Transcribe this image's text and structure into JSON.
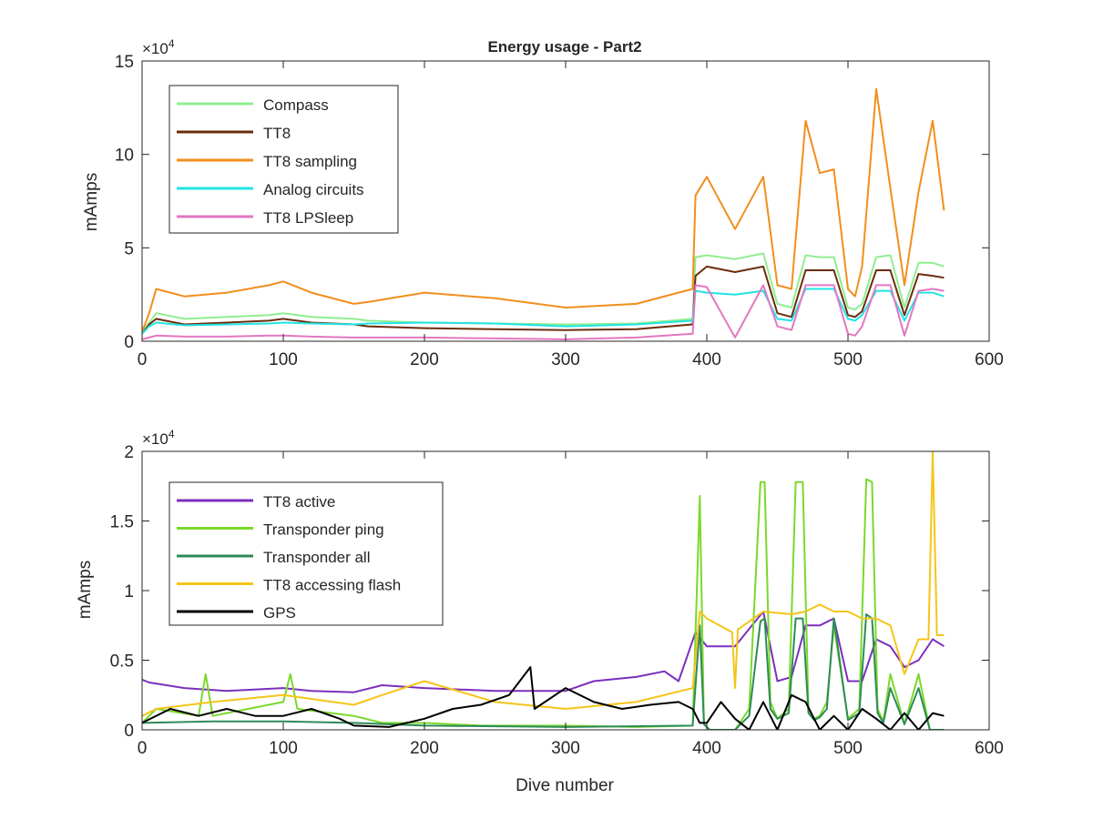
{
  "chart_data": [
    {
      "type": "line",
      "title": "Energy usage - Part2",
      "xlabel": "",
      "ylabel": "mAmps",
      "xlim": [
        0,
        600
      ],
      "ylim": [
        0,
        150000
      ],
      "y_multiplier_label": {
        "base": "×10",
        "exp": "4"
      },
      "x_ticks": [
        "0",
        "100",
        "200",
        "300",
        "400",
        "500",
        "600"
      ],
      "y_ticks": [
        "0",
        "5",
        "10",
        "15"
      ],
      "legend_position": "top-left",
      "grid": false,
      "series": [
        {
          "name": "Compass",
          "color": "#90ee90",
          "x": [
            0,
            5,
            10,
            30,
            60,
            90,
            100,
            120,
            150,
            160,
            200,
            250,
            300,
            350,
            390,
            392,
            400,
            420,
            440,
            450,
            460,
            470,
            480,
            490,
            500,
            505,
            510,
            520,
            530,
            540,
            550,
            560,
            568
          ],
          "values": [
            5000,
            10000,
            15000,
            12000,
            13000,
            14000,
            15000,
            13000,
            12000,
            11000,
            10000,
            9500,
            9000,
            9500,
            12000,
            45000,
            46000,
            44000,
            47000,
            20000,
            18000,
            46000,
            45000,
            45000,
            18000,
            17000,
            20000,
            45000,
            46000,
            18000,
            42000,
            42000,
            40000
          ]
        },
        {
          "name": "TT8",
          "color": "#6b2d0c",
          "x": [
            0,
            5,
            10,
            30,
            60,
            90,
            100,
            120,
            150,
            160,
            200,
            250,
            300,
            350,
            390,
            392,
            400,
            420,
            440,
            450,
            460,
            470,
            480,
            490,
            500,
            505,
            510,
            520,
            530,
            540,
            550,
            560,
            568
          ],
          "values": [
            4000,
            9000,
            12000,
            9000,
            10000,
            11000,
            12000,
            10000,
            9000,
            8000,
            7000,
            6500,
            6000,
            6500,
            9000,
            35000,
            40000,
            37000,
            40000,
            15000,
            13000,
            38000,
            38000,
            38000,
            14000,
            13000,
            16000,
            38000,
            38000,
            14000,
            36000,
            35000,
            34000
          ]
        },
        {
          "name": "TT8 sampling",
          "color": "#f28e1c",
          "x": [
            0,
            5,
            10,
            30,
            60,
            90,
            100,
            120,
            150,
            160,
            200,
            250,
            300,
            350,
            390,
            392,
            400,
            420,
            440,
            450,
            460,
            470,
            480,
            490,
            500,
            505,
            510,
            520,
            530,
            540,
            550,
            560,
            568
          ],
          "values": [
            5000,
            15000,
            28000,
            24000,
            26000,
            30000,
            32000,
            26000,
            20000,
            21000,
            26000,
            23000,
            18000,
            20000,
            28000,
            78000,
            88000,
            60000,
            88000,
            30000,
            28000,
            118000,
            90000,
            92000,
            28000,
            24000,
            40000,
            135000,
            82000,
            30000,
            80000,
            118000,
            70000
          ]
        },
        {
          "name": "Analog circuits",
          "color": "#22e3e3",
          "x": [
            0,
            5,
            10,
            30,
            60,
            90,
            100,
            120,
            150,
            160,
            200,
            250,
            300,
            350,
            390,
            392,
            400,
            420,
            440,
            450,
            460,
            470,
            480,
            490,
            500,
            505,
            510,
            520,
            530,
            540,
            550,
            560,
            568
          ],
          "values": [
            4000,
            8000,
            10000,
            8500,
            9000,
            9500,
            10000,
            9500,
            9000,
            9500,
            10000,
            9500,
            8000,
            9000,
            11000,
            27000,
            26000,
            25000,
            27000,
            12000,
            11000,
            28000,
            28000,
            28000,
            12000,
            11000,
            14000,
            27000,
            27000,
            11000,
            26000,
            26000,
            24000
          ]
        },
        {
          "name": "TT8 LPSleep",
          "color": "#e377c2",
          "x": [
            0,
            5,
            10,
            30,
            60,
            90,
            100,
            120,
            150,
            160,
            200,
            250,
            300,
            350,
            390,
            392,
            400,
            420,
            440,
            450,
            460,
            470,
            480,
            490,
            500,
            505,
            510,
            520,
            530,
            540,
            550,
            560,
            568
          ],
          "values": [
            1000,
            2000,
            3000,
            2500,
            2500,
            3000,
            3000,
            2500,
            2000,
            2000,
            2000,
            1500,
            1000,
            2000,
            4000,
            30000,
            29000,
            2000,
            30000,
            8000,
            6000,
            30000,
            30000,
            30000,
            4000,
            3000,
            8000,
            30000,
            30000,
            3000,
            27000,
            28000,
            27000
          ]
        }
      ]
    },
    {
      "type": "line",
      "title": "",
      "xlabel": "Dive number",
      "ylabel": "mAmps",
      "xlim": [
        0,
        600
      ],
      "ylim": [
        0,
        20000
      ],
      "y_multiplier_label": {
        "base": "×10",
        "exp": "4"
      },
      "x_ticks": [
        "0",
        "100",
        "200",
        "300",
        "400",
        "500",
        "600"
      ],
      "y_ticks": [
        "0",
        "0.5",
        "1",
        "1.5",
        "2"
      ],
      "legend_position": "top-left",
      "grid": false,
      "series": [
        {
          "name": "TT8 active",
          "color": "#7b2fbe",
          "x": [
            0,
            5,
            30,
            60,
            100,
            120,
            150,
            170,
            200,
            250,
            300,
            320,
            350,
            370,
            380,
            392,
            400,
            420,
            440,
            450,
            460,
            470,
            480,
            490,
            500,
            510,
            520,
            530,
            540,
            550,
            560,
            568
          ],
          "values": [
            3600,
            3400,
            3000,
            2800,
            3000,
            2800,
            2700,
            3200,
            3000,
            2800,
            2800,
            3500,
            3800,
            4200,
            3500,
            7000,
            6000,
            6000,
            8500,
            3500,
            3800,
            7500,
            7500,
            8000,
            3500,
            3500,
            6500,
            6000,
            4500,
            5000,
            6500,
            6000
          ]
        },
        {
          "name": "Transponder ping",
          "color": "#7bd82c",
          "x": [
            0,
            10,
            40,
            45,
            50,
            100,
            105,
            110,
            150,
            170,
            200,
            240,
            300,
            350,
            390,
            395,
            398,
            402,
            405,
            420,
            430,
            438,
            441,
            445,
            450,
            458,
            463,
            468,
            472,
            476,
            480,
            485,
            490,
            500,
            508,
            513,
            517,
            521,
            525,
            530,
            540,
            550,
            558,
            568
          ],
          "values": [
            500,
            1500,
            1000,
            4000,
            1000,
            2000,
            4000,
            1500,
            1000,
            500,
            500,
            300,
            300,
            200,
            300,
            16800,
            400,
            0,
            0,
            0,
            1500,
            17800,
            17800,
            2000,
            800,
            1500,
            17800,
            17800,
            1500,
            800,
            1000,
            2000,
            7500,
            800,
            1500,
            18000,
            17800,
            1500,
            600,
            4000,
            400,
            4000,
            0,
            0
          ]
        },
        {
          "name": "Transponder all",
          "color": "#2e8b57",
          "x": [
            0,
            50,
            100,
            150,
            200,
            300,
            390,
            395,
            398,
            402,
            405,
            420,
            430,
            438,
            441,
            445,
            450,
            458,
            463,
            468,
            472,
            476,
            480,
            485,
            490,
            500,
            508,
            513,
            517,
            521,
            525,
            530,
            540,
            550,
            558,
            568
          ],
          "values": [
            500,
            600,
            600,
            500,
            300,
            200,
            300,
            7500,
            400,
            0,
            0,
            0,
            1000,
            7800,
            8000,
            1500,
            800,
            1200,
            8000,
            8000,
            1200,
            700,
            900,
            1500,
            8000,
            700,
            1200,
            8300,
            8000,
            1200,
            500,
            3000,
            400,
            3000,
            0,
            0
          ]
        },
        {
          "name": "TT8 accessing flash",
          "color": "#f5c518",
          "x": [
            0,
            10,
            50,
            100,
            150,
            170,
            200,
            250,
            300,
            350,
            390,
            395,
            400,
            418,
            420,
            422,
            440,
            460,
            470,
            480,
            490,
            500,
            510,
            520,
            530,
            540,
            550,
            557,
            560,
            563,
            568
          ],
          "values": [
            1000,
            1500,
            2000,
            2500,
            1800,
            2500,
            3500,
            2000,
            1500,
            2000,
            3000,
            8500,
            8000,
            7000,
            3000,
            7200,
            8500,
            8300,
            8500,
            9000,
            8500,
            8500,
            8000,
            8000,
            7500,
            4000,
            6500,
            6500,
            20000,
            6800,
            6800
          ]
        },
        {
          "name": "GPS",
          "color": "#000000",
          "x": [
            0,
            20,
            40,
            60,
            80,
            100,
            120,
            140,
            150,
            175,
            200,
            220,
            240,
            260,
            275,
            278,
            300,
            320,
            340,
            360,
            380,
            390,
            395,
            400,
            410,
            420,
            430,
            440,
            450,
            460,
            470,
            480,
            490,
            500,
            510,
            520,
            530,
            540,
            550,
            560,
            568
          ],
          "values": [
            500,
            1500,
            1000,
            1500,
            1000,
            1000,
            1500,
            800,
            300,
            200,
            800,
            1500,
            1800,
            2500,
            4500,
            1500,
            3000,
            2000,
            1500,
            1800,
            2000,
            1500,
            500,
            500,
            2000,
            800,
            0,
            2000,
            0,
            2500,
            2000,
            0,
            1000,
            0,
            1500,
            800,
            0,
            1200,
            0,
            1200,
            1000
          ]
        }
      ]
    }
  ]
}
